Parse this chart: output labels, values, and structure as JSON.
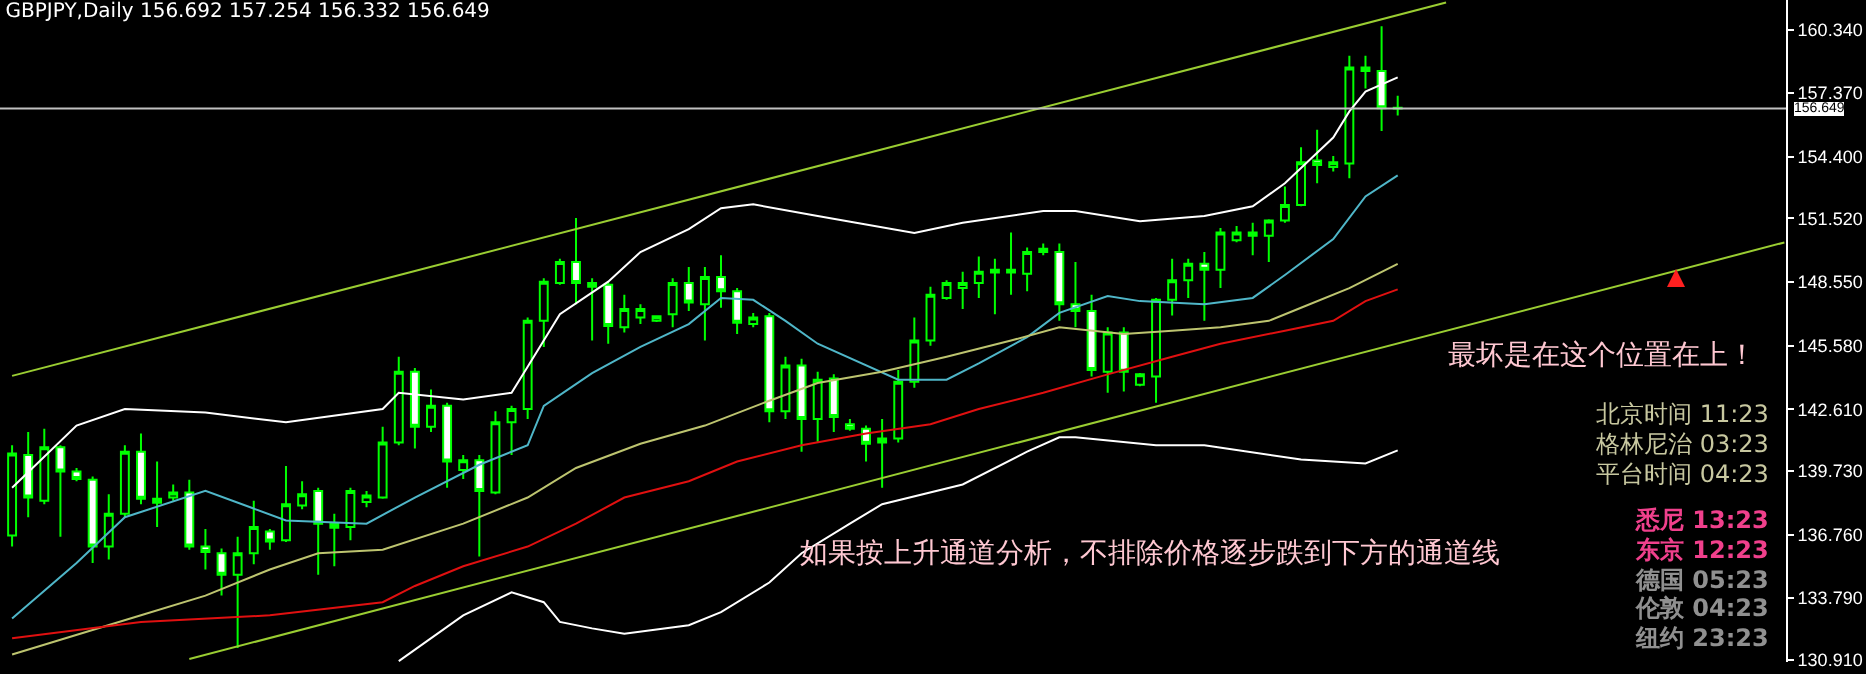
{
  "chart_data": {
    "type": "candlestick",
    "title": "GBPJPY,Daily 156.692 157.254 156.332 156.649",
    "color": "#00ff00",
    "grid": false,
    "tick_labels": "y",
    "categories": [
      null,
      null,
      null,
      null,
      null,
      null,
      null,
      null,
      null,
      null,
      null,
      null,
      null,
      null,
      null,
      null,
      null,
      null,
      null,
      null,
      null,
      null,
      null,
      null,
      null,
      null,
      null,
      null,
      null,
      null,
      null,
      null,
      null,
      null,
      null,
      null,
      null,
      null,
      null,
      null,
      null,
      null,
      null,
      null,
      null,
      null,
      null,
      null,
      null,
      null,
      null,
      null,
      null,
      null,
      null,
      null,
      null,
      null,
      null,
      null,
      null,
      null,
      null,
      null,
      null,
      null,
      null,
      null,
      null,
      null,
      null,
      null,
      null,
      null,
      null,
      null,
      null,
      null,
      null,
      null,
      null,
      null,
      null,
      null,
      null,
      null,
      null,
      null,
      null,
      null,
      null,
      null,
      null,
      null,
      null,
      null,
      null,
      null,
      null,
      null,
      null,
      null,
      null,
      null,
      null,
      null,
      null,
      null,
      null,
      null,
      null
    ],
    "ohlc": [
      [
        136.72,
        140.93,
        136.2,
        140.54
      ],
      [
        140.48,
        141.55,
        137.57,
        138.49
      ],
      [
        138.34,
        141.7,
        138.18,
        140.84
      ],
      [
        140.84,
        140.93,
        136.66,
        139.71
      ],
      [
        139.71,
        139.87,
        139.25,
        139.35
      ],
      [
        139.32,
        139.47,
        135.43,
        136.2
      ],
      [
        136.2,
        138.64,
        135.59,
        137.73
      ],
      [
        137.73,
        140.93,
        137.57,
        140.63
      ],
      [
        140.63,
        141.48,
        138.18,
        138.43
      ],
      [
        138.43,
        140.17,
        137.11,
        138.25
      ],
      [
        138.49,
        139.1,
        138.34,
        138.73
      ],
      [
        138.73,
        139.32,
        136.05,
        136.2
      ],
      [
        136.2,
        137.02,
        135.13,
        135.95
      ],
      [
        135.89,
        136.11,
        133.91,
        134.88
      ],
      [
        134.88,
        136.66,
        131.46,
        135.89
      ],
      [
        135.89,
        138.34,
        135.37,
        137.11
      ],
      [
        136.9,
        137.02,
        136.05,
        136.44
      ],
      [
        136.5,
        139.96,
        136.41,
        138.18
      ],
      [
        138.12,
        139.25,
        137.94,
        138.64
      ],
      [
        138.8,
        138.95,
        134.88,
        137.27
      ],
      [
        137.27,
        137.73,
        135.28,
        137.08
      ],
      [
        137.11,
        138.95,
        136.5,
        138.8
      ],
      [
        138.28,
        138.8,
        138.03,
        138.58
      ],
      [
        138.49,
        141.79,
        138.43,
        141.06
      ],
      [
        141.06,
        145.06,
        140.93,
        144.36
      ],
      [
        144.36,
        144.54,
        140.78,
        141.79
      ],
      [
        141.79,
        143.53,
        141.55,
        142.77
      ],
      [
        142.77,
        142.92,
        138.95,
        140.17
      ],
      [
        139.77,
        140.48,
        139.35,
        140.23
      ],
      [
        140.23,
        140.48,
        135.74,
        138.8
      ],
      [
        138.73,
        142.52,
        138.64,
        142.0
      ],
      [
        142.0,
        142.77,
        140.48,
        142.62
      ],
      [
        142.62,
        146.89,
        142.16,
        146.74
      ],
      [
        146.74,
        148.73,
        145.52,
        148.57
      ],
      [
        148.51,
        149.64,
        148.42,
        149.49
      ],
      [
        149.49,
        151.54,
        147.51,
        148.51
      ],
      [
        148.33,
        148.73,
        145.82,
        148.51
      ],
      [
        148.42,
        148.57,
        145.67,
        146.5
      ],
      [
        146.44,
        147.96,
        146.19,
        147.29
      ],
      [
        146.89,
        147.51,
        146.59,
        147.29
      ],
      [
        146.74,
        146.98,
        146.68,
        146.95
      ],
      [
        147.05,
        148.73,
        146.44,
        148.51
      ],
      [
        148.51,
        149.25,
        147.2,
        147.6
      ],
      [
        147.51,
        149.25,
        145.82,
        148.79
      ],
      [
        148.79,
        149.8,
        147.35,
        148.12
      ],
      [
        148.12,
        148.27,
        146.13,
        146.65
      ],
      [
        146.59,
        147.11,
        146.44,
        146.89
      ],
      [
        146.95,
        147.11,
        142.0,
        142.52
      ],
      [
        142.52,
        145.06,
        142.16,
        144.66
      ],
      [
        144.66,
        144.97,
        140.63,
        142.16
      ],
      [
        142.16,
        144.36,
        141.09,
        143.99
      ],
      [
        144.05,
        144.24,
        141.55,
        142.25
      ],
      [
        141.91,
        142.16,
        141.61,
        141.7
      ],
      [
        141.7,
        141.85,
        140.17,
        141.0
      ],
      [
        141.24,
        142.16,
        138.95,
        141.06
      ],
      [
        141.24,
        144.45,
        141.06,
        143.9
      ],
      [
        143.9,
        146.89,
        143.62,
        145.82
      ],
      [
        145.82,
        148.33,
        145.58,
        147.96
      ],
      [
        147.81,
        148.64,
        147.72,
        148.51
      ],
      [
        148.27,
        149.03,
        147.29,
        148.51
      ],
      [
        148.51,
        149.74,
        147.81,
        149.03
      ],
      [
        149.0,
        149.64,
        147.05,
        149.12
      ],
      [
        149.0,
        150.87,
        147.96,
        149.12
      ],
      [
        148.94,
        150.16,
        148.12,
        149.95
      ],
      [
        149.95,
        150.35,
        149.8,
        150.1
      ],
      [
        149.95,
        150.35,
        146.74,
        147.51
      ],
      [
        147.51,
        149.49,
        146.44,
        147.2
      ],
      [
        147.2,
        147.96,
        144.14,
        144.45
      ],
      [
        144.36,
        146.44,
        143.38,
        146.19
      ],
      [
        146.19,
        146.44,
        143.44,
        144.36
      ],
      [
        143.75,
        144.3,
        143.68,
        144.24
      ],
      [
        144.14,
        147.81,
        142.92,
        147.72
      ],
      [
        147.72,
        149.64,
        146.99,
        148.64
      ],
      [
        148.64,
        149.64,
        147.81,
        149.4
      ],
      [
        149.4,
        149.95,
        146.74,
        149.12
      ],
      [
        149.12,
        151.08,
        148.27,
        150.87
      ],
      [
        150.5,
        151.17,
        150.41,
        150.87
      ],
      [
        150.71,
        151.32,
        149.8,
        150.87
      ],
      [
        150.71,
        151.48,
        149.49,
        151.42
      ],
      [
        151.42,
        153.01,
        151.32,
        152.15
      ],
      [
        152.15,
        154.84,
        152.09,
        154.14
      ],
      [
        154.23,
        155.66,
        153.16,
        154.01
      ],
      [
        153.92,
        154.44,
        153.71,
        154.14
      ],
      [
        154.08,
        159.12,
        153.4,
        158.57
      ],
      [
        158.57,
        159.12,
        157.59,
        158.41
      ],
      [
        158.41,
        160.49,
        155.6,
        156.67
      ],
      [
        156.692,
        157.254,
        156.332,
        156.649
      ],
      null,
      null,
      null,
      null,
      null,
      null,
      null,
      null,
      null,
      null,
      null,
      null,
      null,
      null,
      null,
      null,
      null,
      null,
      null,
      null,
      null,
      null,
      null,
      null
    ],
    "series": [
      {
        "type": "line",
        "color": "#9acd32",
        "values": [
          144.17,
          null,
          null,
          null,
          null,
          null,
          null,
          null,
          null,
          null,
          null,
          null,
          null,
          null,
          null,
          null,
          null,
          null,
          null,
          null,
          null,
          null,
          null,
          null,
          null,
          null,
          null,
          null,
          null,
          null,
          null,
          null,
          null,
          null,
          null,
          null,
          null,
          null,
          null,
          null,
          null,
          null,
          null,
          null,
          null,
          null,
          null,
          null,
          null,
          null,
          null,
          null,
          null,
          null,
          null,
          null,
          null,
          null,
          null,
          null,
          null,
          null,
          null,
          null,
          null,
          null,
          null,
          null,
          null,
          null,
          null,
          null,
          null,
          null,
          null,
          null,
          null,
          null,
          null,
          null,
          null,
          null,
          null,
          null,
          null,
          null,
          null,
          null,
          null,
          161.6,
          null,
          null,
          null,
          null,
          null,
          null,
          null,
          null,
          null,
          null,
          null,
          null,
          null,
          null,
          null,
          null,
          null,
          null,
          null,
          null,
          null
        ]
      },
      {
        "type": "line",
        "color": "#9acd32",
        "values": [
          null,
          null,
          null,
          null,
          null,
          null,
          null,
          null,
          null,
          null,
          null,
          130.95,
          null,
          null,
          null,
          null,
          null,
          null,
          null,
          null,
          null,
          null,
          null,
          null,
          null,
          null,
          null,
          null,
          null,
          null,
          null,
          null,
          null,
          null,
          null,
          null,
          null,
          null,
          null,
          null,
          null,
          null,
          null,
          null,
          null,
          null,
          null,
          null,
          null,
          null,
          null,
          null,
          null,
          null,
          null,
          null,
          null,
          null,
          null,
          null,
          null,
          null,
          null,
          null,
          null,
          null,
          null,
          null,
          null,
          null,
          null,
          null,
          null,
          null,
          null,
          null,
          null,
          null,
          null,
          null,
          null,
          null,
          null,
          null,
          null,
          null,
          null,
          null,
          null,
          null,
          null,
          null,
          null,
          null,
          null,
          null,
          null,
          null,
          null,
          null,
          null,
          null,
          null,
          null,
          null,
          null,
          null,
          null,
          null,
          null,
          150.4
        ]
      },
      {
        "type": "line",
        "color": "#ffffff",
        "values": [
          138.95,
          null,
          null,
          null,
          141.85,
          null,
          null,
          142.62,
          null,
          null,
          null,
          null,
          142.46,
          null,
          null,
          null,
          null,
          142.0,
          null,
          null,
          null,
          null,
          null,
          142.62,
          143.38,
          null,
          null,
          null,
          143.07,
          null,
          null,
          143.38,
          144.6,
          null,
          147.05,
          null,
          null,
          148.57,
          null,
          149.95,
          null,
          null,
          151.02,
          null,
          152.0,
          null,
          152.18,
          null,
          null,
          null,
          151.63,
          null,
          null,
          null,
          null,
          null,
          150.84,
          null,
          null,
          151.32,
          null,
          null,
          null,
          null,
          151.87,
          null,
          151.87,
          null,
          null,
          null,
          151.39,
          null,
          null,
          null,
          151.63,
          null,
          null,
          152.09,
          null,
          153.16,
          null,
          null,
          155.3,
          156.52,
          157.44,
          null,
          158.11,
          null,
          null,
          null,
          null,
          null,
          null,
          null,
          null,
          null,
          null,
          null,
          null,
          null,
          null,
          null,
          null,
          null,
          null,
          null,
          null,
          null,
          null,
          null,
          null
        ]
      },
      {
        "type": "line",
        "color": "#ffffff",
        "values": [
          null,
          null,
          null,
          null,
          null,
          null,
          null,
          null,
          null,
          null,
          null,
          null,
          null,
          null,
          null,
          null,
          null,
          null,
          null,
          null,
          null,
          null,
          null,
          null,
          130.85,
          null,
          null,
          null,
          132.99,
          null,
          null,
          134.06,
          null,
          133.6,
          132.68,
          null,
          132.38,
          null,
          132.13,
          null,
          null,
          null,
          132.53,
          null,
          133.14,
          null,
          null,
          134.52,
          null,
          135.89,
          null,
          null,
          137.27,
          null,
          138.18,
          null,
          null,
          null,
          null,
          139.1,
          null,
          null,
          null,
          140.63,
          null,
          141.3,
          141.3,
          null,
          null,
          null,
          null,
          140.93,
          null,
          null,
          140.93,
          null,
          null,
          null,
          null,
          null,
          140.26,
          null,
          null,
          null,
          140.08,
          null,
          140.69,
          null,
          null,
          null,
          null,
          null,
          null,
          null,
          null,
          null,
          null,
          null,
          null,
          null,
          null,
          null,
          null,
          null,
          null,
          null,
          null,
          null,
          null,
          null,
          null
        ]
      },
      {
        "type": "line",
        "color": "#4fb6c8",
        "values": [
          132.84,
          null,
          null,
          null,
          135.43,
          null,
          null,
          137.57,
          null,
          null,
          null,
          null,
          138.8,
          null,
          null,
          null,
          null,
          137.42,
          null,
          null,
          null,
          null,
          137.27,
          null,
          null,
          138.49,
          null,
          null,
          null,
          140.02,
          null,
          null,
          140.93,
          142.77,
          null,
          null,
          144.3,
          null,
          null,
          145.52,
          null,
          null,
          146.59,
          null,
          147.81,
          null,
          147.72,
          null,
          146.74,
          null,
          145.67,
          null,
          null,
          null,
          null,
          143.99,
          null,
          null,
          143.99,
          null,
          144.75,
          null,
          null,
          145.98,
          null,
          147.11,
          null,
          null,
          147.9,
          null,
          147.66,
          null,
          null,
          null,
          147.51,
          null,
          null,
          147.81,
          null,
          148.88,
          null,
          null,
          150.56,
          null,
          152.55,
          null,
          153.53,
          null,
          null,
          null,
          null,
          null,
          null,
          null,
          null,
          null,
          null,
          null,
          null,
          null,
          null,
          null,
          null,
          null,
          null,
          null,
          null,
          null,
          null,
          null,
          null
        ]
      },
      {
        "type": "line",
        "color": "#bdc46f",
        "values": [
          131.16,
          null,
          null,
          null,
          null,
          null,
          null,
          null,
          132.99,
          null,
          null,
          null,
          133.91,
          null,
          null,
          null,
          135.13,
          null,
          null,
          135.89,
          null,
          null,
          null,
          136.05,
          null,
          null,
          null,
          null,
          137.27,
          null,
          null,
          null,
          138.49,
          null,
          null,
          139.87,
          null,
          null,
          null,
          141.0,
          null,
          null,
          null,
          141.85,
          null,
          null,
          null,
          143.01,
          null,
          null,
          143.84,
          null,
          null,
          null,
          144.36,
          null,
          null,
          null,
          145.06,
          null,
          null,
          null,
          145.82,
          null,
          null,
          146.44,
          null,
          null,
          null,
          146.13,
          null,
          null,
          146.28,
          null,
          null,
          146.44,
          null,
          null,
          146.74,
          null,
          147.35,
          null,
          null,
          148.27,
          null,
          null,
          149.4,
          null,
          null,
          null,
          null,
          null,
          null,
          null,
          null,
          null,
          null,
          null,
          null,
          null,
          null,
          null,
          null,
          null,
          null,
          null,
          null,
          null,
          null,
          null,
          null
        ]
      },
      {
        "type": "line",
        "color": "#e01010",
        "values": [
          131.92,
          null,
          null,
          null,
          null,
          null,
          null,
          null,
          132.68,
          null,
          null,
          null,
          null,
          null,
          null,
          null,
          132.99,
          null,
          null,
          null,
          null,
          null,
          null,
          133.6,
          null,
          134.36,
          null,
          null,
          135.28,
          null,
          null,
          null,
          136.2,
          null,
          null,
          137.27,
          null,
          null,
          138.49,
          null,
          null,
          null,
          139.25,
          null,
          null,
          140.17,
          null,
          null,
          null,
          140.93,
          null,
          null,
          null,
          141.48,
          null,
          null,
          null,
          141.91,
          null,
          null,
          142.62,
          null,
          null,
          null,
          143.38,
          null,
          null,
          null,
          144.24,
          null,
          null,
          null,
          145.06,
          null,
          null,
          145.67,
          null,
          null,
          null,
          146.28,
          null,
          null,
          146.74,
          null,
          147.66,
          null,
          148.21,
          null,
          null,
          null,
          null,
          null,
          null,
          null,
          null,
          null,
          null,
          null,
          null,
          null,
          null,
          null,
          null,
          null,
          null,
          null,
          null,
          null,
          null,
          null,
          null
        ]
      }
    ],
    "ylim": [
      130.81,
      161.72
    ],
    "yticks": [
      {
        "value": 160.34,
        "label": "160.340"
      },
      {
        "value": 157.37,
        "label": "157.370"
      },
      {
        "value": 154.4,
        "label": "154.400"
      },
      {
        "value": 151.52,
        "label": "151.520"
      },
      {
        "value": 148.55,
        "label": "148.550"
      },
      {
        "value": 145.58,
        "label": "145.580"
      },
      {
        "value": 142.61,
        "label": "142.610"
      },
      {
        "value": 139.73,
        "label": "139.730"
      },
      {
        "value": 136.76,
        "label": "136.760"
      },
      {
        "value": 133.79,
        "label": "133.790"
      },
      {
        "value": 130.91,
        "label": "130.910"
      }
    ],
    "ref_lines": [
      {
        "axis": "y",
        "value": 156.649,
        "label": "156.649",
        "color": "#c0c0c0"
      }
    ],
    "annotations": [
      "最坏是在这个位置在上！",
      "如果按上升通道分析，不排除价格逐步跌到下方的通道线",
      "北京时间 11:23",
      "格林尼治 03:23",
      "平台时间 04:23",
      "悉尼 13:23",
      "东京 12:23",
      "德国 05:23",
      "伦敦 04:23",
      "纽约 23:23"
    ]
  }
}
